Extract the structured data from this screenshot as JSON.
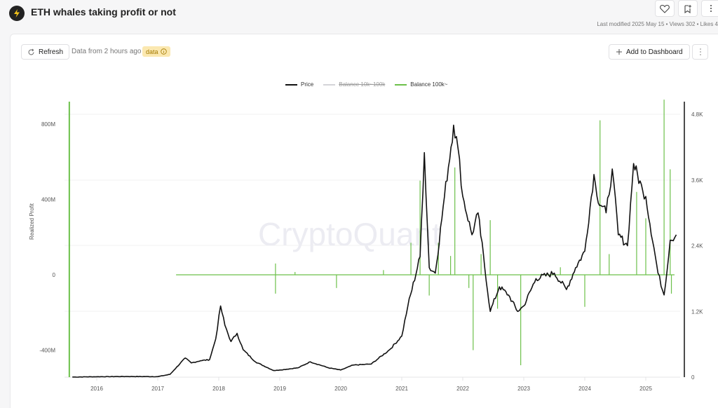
{
  "header": {
    "title": "ETH whales taking profit or not",
    "meta": "Last modified 2025 May 15 • Views 302 • Likes 4",
    "actions": [
      {
        "name": "like-button",
        "icon": "heart-icon"
      },
      {
        "name": "bookmark-button",
        "icon": "bookmark-add-icon"
      },
      {
        "name": "more-button",
        "icon": "more-vertical-icon"
      }
    ]
  },
  "toolbar": {
    "refresh_label": "Refresh",
    "data_from": "Data from 2 hours ago",
    "badge_label": "data",
    "add_dashboard_label": "Add to Dashboard"
  },
  "watermark": "CryptoQuant",
  "chart_data": {
    "type": "line",
    "title": "ETH whales taking profit or not",
    "legend": [
      {
        "name": "Price",
        "color": "#111111",
        "hidden": false
      },
      {
        "name": "Balance 10k~100k",
        "color": "#cccccc",
        "hidden": true
      },
      {
        "name": "Balance 100k~",
        "color": "#6cc04a",
        "hidden": false
      }
    ],
    "legend_position": "top-center",
    "ylabel": "Realized Profit",
    "y_left_ticks": [
      "800M",
      "400M",
      "0",
      "-400M"
    ],
    "y_left_range": [
      -530000000,
      920000000
    ],
    "y_right_ticks": [
      "4.8K",
      "3.6K",
      "2.4K",
      "1.2K",
      "0"
    ],
    "y_right_range": [
      0,
      4800
    ],
    "x_ticks": [
      "2016",
      "2017",
      "2018",
      "2019",
      "2020",
      "2021",
      "2022",
      "2023",
      "2024",
      "2025"
    ],
    "grid": true,
    "series": [
      {
        "name": "Price",
        "axis": "right",
        "x": [
          2015.6,
          2016.0,
          2016.5,
          2017.0,
          2017.2,
          2017.45,
          2017.55,
          2017.7,
          2017.85,
          2017.95,
          2018.03,
          2018.1,
          2018.2,
          2018.3,
          2018.4,
          2018.6,
          2018.9,
          2019.0,
          2019.3,
          2019.5,
          2019.8,
          2020.0,
          2020.2,
          2020.5,
          2020.8,
          2021.0,
          2021.1,
          2021.3,
          2021.37,
          2021.45,
          2021.55,
          2021.7,
          2021.85,
          2021.92,
          2022.0,
          2022.15,
          2022.25,
          2022.45,
          2022.6,
          2022.75,
          2022.9,
          2023.0,
          2023.2,
          2023.5,
          2023.7,
          2023.85,
          2024.0,
          2024.15,
          2024.2,
          2024.35,
          2024.45,
          2024.55,
          2024.7,
          2024.8,
          2024.95,
          2025.0,
          2025.2,
          2025.3,
          2025.4,
          2025.5
        ],
        "values": [
          2,
          8,
          12,
          10,
          50,
          350,
          260,
          300,
          320,
          700,
          1300,
          950,
          650,
          800,
          500,
          280,
          120,
          130,
          170,
          280,
          170,
          130,
          220,
          240,
          500,
          750,
          1300,
          2200,
          4100,
          2000,
          1900,
          3300,
          4600,
          4200,
          3300,
          2600,
          3000,
          1200,
          1650,
          1500,
          1200,
          1300,
          1800,
          1900,
          1600,
          2000,
          2300,
          3700,
          3300,
          3000,
          3800,
          2600,
          2400,
          3900,
          3400,
          3300,
          1900,
          1500,
          2500,
          2600
        ]
      },
      {
        "name": "Balance 100k~",
        "axis": "left",
        "spikes": [
          {
            "x": 2015.55,
            "value": 900000000
          },
          {
            "x": 2017.2,
            "value": 0
          },
          {
            "x": 2018.93,
            "value": -100000000
          },
          {
            "x": 2018.93,
            "value": 60000000
          },
          {
            "x": 2019.25,
            "value": 15000000
          },
          {
            "x": 2019.93,
            "value": -70000000
          },
          {
            "x": 2020.7,
            "value": 25000000
          },
          {
            "x": 2021.15,
            "value": 170000000
          },
          {
            "x": 2021.3,
            "value": 500000000
          },
          {
            "x": 2021.45,
            "value": -110000000
          },
          {
            "x": 2021.6,
            "value": 170000000
          },
          {
            "x": 2021.8,
            "value": 100000000
          },
          {
            "x": 2021.87,
            "value": 570000000
          },
          {
            "x": 2022.1,
            "value": -70000000
          },
          {
            "x": 2022.17,
            "value": -400000000
          },
          {
            "x": 2022.3,
            "value": 110000000
          },
          {
            "x": 2022.45,
            "value": 290000000
          },
          {
            "x": 2022.57,
            "value": -180000000
          },
          {
            "x": 2022.95,
            "value": -480000000
          },
          {
            "x": 2023.6,
            "value": 40000000
          },
          {
            "x": 2024.0,
            "value": -170000000
          },
          {
            "x": 2024.25,
            "value": 820000000
          },
          {
            "x": 2024.4,
            "value": 110000000
          },
          {
            "x": 2024.85,
            "value": 440000000
          },
          {
            "x": 2025.0,
            "value": 300000000
          },
          {
            "x": 2025.3,
            "value": 930000000
          },
          {
            "x": 2025.4,
            "value": 560000000
          },
          {
            "x": 2025.42,
            "value": -100000000
          }
        ]
      }
    ]
  }
}
